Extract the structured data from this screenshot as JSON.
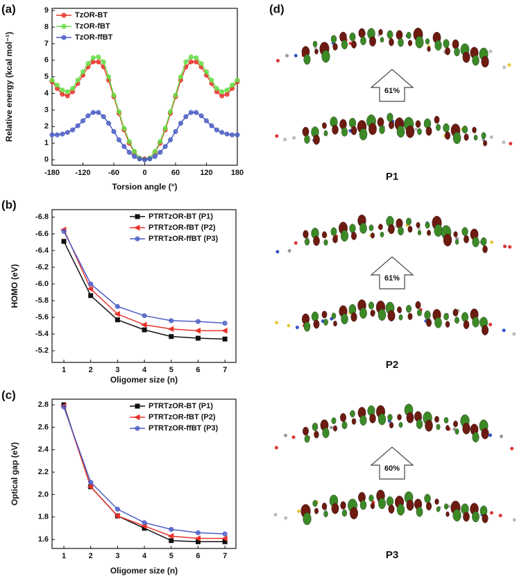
{
  "chart_data": [
    {
      "type": "line",
      "label": "(a)",
      "x_label": "Torsion angle (°)",
      "y_label": "Relative energy (kcal mol⁻¹)",
      "xlim": [
        -180,
        180
      ],
      "xticks": [
        -180,
        -120,
        -60,
        0,
        60,
        120,
        180
      ],
      "ylim": [
        -0.33,
        9.13
      ],
      "yticks": [
        0,
        1,
        2,
        3,
        4,
        5,
        6,
        7,
        8,
        9
      ],
      "legend": "upper left",
      "x": [
        -180,
        -170,
        -160,
        -150,
        -140,
        -130,
        -120,
        -110,
        -100,
        -90,
        -80,
        -70,
        -60,
        -50,
        -40,
        -30,
        -20,
        -10,
        0,
        10,
        20,
        30,
        40,
        50,
        60,
        70,
        80,
        90,
        100,
        110,
        120,
        130,
        140,
        150,
        160,
        170,
        180
      ],
      "series": [
        {
          "name": "TzOR-BT",
          "color": "#e8332a",
          "marker": "circle",
          "values": [
            4.7,
            4.3,
            3.95,
            3.85,
            4.1,
            4.6,
            5.1,
            5.6,
            5.9,
            5.9,
            5.6,
            4.8,
            3.8,
            2.8,
            1.8,
            1.0,
            0.45,
            0.1,
            0.05,
            0.1,
            0.45,
            1.0,
            1.8,
            2.8,
            3.8,
            4.8,
            5.6,
            5.9,
            5.9,
            5.6,
            5.1,
            4.6,
            4.1,
            3.85,
            3.95,
            4.3,
            4.7
          ]
        },
        {
          "name": "TzOR-fBT",
          "color": "#66dd44",
          "marker": "circle",
          "values": [
            4.8,
            4.5,
            4.2,
            4.1,
            4.3,
            4.8,
            5.3,
            5.8,
            6.15,
            6.2,
            5.9,
            5.0,
            3.9,
            2.9,
            1.9,
            1.1,
            0.5,
            0.1,
            0.0,
            0.1,
            0.5,
            1.1,
            1.9,
            2.9,
            3.9,
            5.0,
            5.9,
            6.2,
            6.15,
            5.8,
            5.3,
            4.8,
            4.3,
            4.1,
            4.2,
            4.5,
            4.8
          ]
        },
        {
          "name": "TzOR-ffBT",
          "color": "#4a5cc4",
          "marker": "circle",
          "values": [
            1.5,
            1.5,
            1.55,
            1.65,
            1.8,
            2.05,
            2.35,
            2.65,
            2.85,
            2.85,
            2.6,
            2.2,
            1.7,
            1.2,
            0.8,
            0.45,
            0.2,
            0.05,
            0.0,
            0.05,
            0.2,
            0.45,
            0.8,
            1.2,
            1.7,
            2.2,
            2.6,
            2.85,
            2.85,
            2.65,
            2.35,
            2.05,
            1.8,
            1.65,
            1.55,
            1.5,
            1.5
          ]
        }
      ]
    },
    {
      "type": "line",
      "label": "(b)",
      "x_label": "Oligomer size (n)",
      "y_label": "HOMO (eV)",
      "xlim": [
        0.56,
        7.41
      ],
      "xticks": [
        1,
        2,
        3,
        4,
        5,
        6,
        7
      ],
      "ylim": [
        -5.06,
        -6.89
      ],
      "yticks": [
        -6.8,
        -6.6,
        -6.4,
        -6.2,
        {
          "value": -6,
          "label": "-6.0"
        },
        -5.8,
        -5.6,
        -5.4,
        -5.2
      ],
      "legend": "upper right",
      "x": [
        1,
        2,
        3,
        4,
        5,
        6,
        7
      ],
      "series": [
        {
          "name": "PTRTzOR-BT (P1)",
          "color": "#111111",
          "marker": "square",
          "values": [
            -6.51,
            -5.86,
            -5.57,
            -5.45,
            -5.37,
            -5.35,
            -5.34
          ]
        },
        {
          "name": "PTRTzOR-fBT (P2)",
          "color": "#e8332a",
          "marker": "triangle",
          "values": [
            -6.65,
            -5.94,
            -5.64,
            -5.51,
            -5.46,
            -5.44,
            -5.44
          ]
        },
        {
          "name": "PTRTzOR-ffBT (P3)",
          "color": "#4a5cc4",
          "marker": "circle",
          "values": [
            -6.63,
            -6.0,
            -5.73,
            -5.62,
            -5.56,
            -5.55,
            -5.53
          ]
        }
      ]
    },
    {
      "type": "line",
      "label": "(c)",
      "x_label": "Oligomer size (n)",
      "y_label": "Optical gap (eV)",
      "xlim": [
        0.56,
        7.41
      ],
      "xticks": [
        1,
        2,
        3,
        4,
        5,
        6,
        7
      ],
      "ylim": [
        1.52,
        2.85
      ],
      "yticks": [
        1.6,
        1.8,
        {
          "value": 2,
          "label": "2.0"
        },
        2.2,
        2.4,
        2.6,
        2.8
      ],
      "legend": "upper right",
      "x": [
        1,
        2,
        3,
        4,
        5,
        6,
        7
      ],
      "series": [
        {
          "name": "PTRTzOR-BT (P1)",
          "color": "#111111",
          "marker": "square",
          "values": [
            2.8,
            2.07,
            1.81,
            1.7,
            1.59,
            1.58,
            1.58
          ]
        },
        {
          "name": "PTRTzOR-fBT (P2)",
          "color": "#e8332a",
          "marker": "triangle",
          "values": [
            2.79,
            2.07,
            1.81,
            1.72,
            1.63,
            1.61,
            1.61
          ]
        },
        {
          "name": "PTRTzOR-ffBT (P3)",
          "color": "#4a5cc4",
          "marker": "circle",
          "values": [
            2.78,
            2.11,
            1.87,
            1.75,
            1.69,
            1.66,
            1.65
          ]
        }
      ]
    }
  ],
  "panel_d": {
    "label": "(d)",
    "items": [
      {
        "percent": "61%",
        "name": "P1"
      },
      {
        "percent": "61%",
        "name": "P2"
      },
      {
        "percent": "60%",
        "name": "P3"
      }
    ]
  }
}
